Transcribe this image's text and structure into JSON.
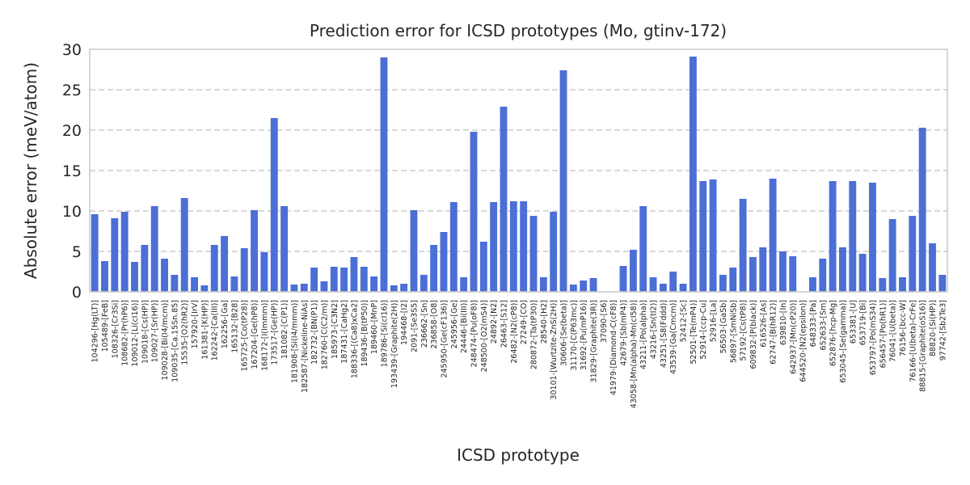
{
  "chart_data": {
    "type": "bar",
    "title": "Prediction error for ICSD prototypes (Mo, gtinv-172)",
    "xlabel": "ICSD prototype",
    "ylabel": "Absolute error (meV/atom)",
    "ylim": [
      0,
      30
    ],
    "yticks": [
      0,
      5,
      10,
      15,
      20,
      25,
      30
    ],
    "grid": "y",
    "bar_color": "#4c6fd6",
    "categories": [
      "104296-[Hg(LT)]",
      "105489-[FeB]",
      "108326-[Cr3Si]",
      "108682-[Pr(hP6)]",
      "109012-[Li(cI16)]",
      "109018-[Cs(HP)]",
      "109027-[Sr(HP)]",
      "109028-[Bi(I4/mcm)]",
      "109035-[Ca.15Sn.85]",
      "15535-[O2(hR2)]",
      "157920-[IrV]",
      "161381-[K(HP)]",
      "162242-[Ca(III)]",
      "162256-[Ga]",
      "165132-[B28]",
      "165725-[Co(tP28)]",
      "167204-[Ge(hP8)]",
      "168172-[I(Immm)]",
      "173517-[Ge(HP)]",
      "181082-[C(P1)]",
      "181908-[Si(I4/mmm)]",
      "182587-[Nickeline-NiAs]",
      "182732-[BN(P1)]",
      "182760-[C(C2/m)]",
      "185973-[C3N2]",
      "187431-[CaHg2]",
      "188336-[(Ca8)xCa2]",
      "189436-[B(tP50)]",
      "189460-[MnP]",
      "189786-[Si(cI16)]",
      "193439-[Graphite(2H)]",
      "194468-[I2]",
      "2091-[Se3S5]",
      "236662-[Sn]",
      "236858-[O8]",
      "245950-[Ge(cF136)]",
      "245956-[Ge]",
      "24446-[Bi(III)]",
      "248474-[Pu(oF8)]",
      "248500-[O2(mS4)]",
      "24892-[N2]",
      "26463-[S12]",
      "26482-[N2(cP8)]",
      "27249-[CO]",
      "280872-[Ta(tP30)]",
      "28540-[H2]",
      "30101-[Wurtzite-ZnS(2H)]",
      "30606-[Se(beta)]",
      "31170-[C(P63mc)]",
      "31692-[Pu(mP16)]",
      "31829-[Graphite(3R)]",
      "37090-[S6]",
      "41979-[Diamond-C(cF8)]",
      "42679-[Sb(mP4)]",
      "43058-[Mn(alpha)-Mn(cI58)]",
      "43211-[Po(alpha)]",
      "43216-[Sn(tI2)]",
      "43251-[S8(Fddd)]",
      "43539-[Ga(Cmcm)]",
      "52412-[Sc]",
      "52501-[Te(mP4)]",
      "52914-[ccp-Cu]",
      "52916-[La]",
      "56503-[GaSb]",
      "56897-[SmNiSb]",
      "57192-[Cs(tP8)]",
      "609832-[P(black)]",
      "616526-[As]",
      "62747-[B(hR12)]",
      "639810-[In]",
      "642937-[Mn(cP20)]",
      "644520-[N2(epsilon)]",
      "648333-[Pa]",
      "652633-[Sm]",
      "652876-[hcp-Mg]",
      "653045-[Se(gamma)]",
      "653381-[U]",
      "653719-[Bi]",
      "653797-[Po(mS34)]",
      "656457-[Po(hR1)]",
      "76041-[U(beta)]",
      "76156-[bcc-W]",
      "76166-[U(beta)-CrFe]",
      "88815-[Graphite(oS16)]",
      "88820-[Si(HP)]",
      "97742-[Sb2Te3]"
    ],
    "values": [
      9.6,
      3.8,
      9.1,
      9.9,
      3.7,
      5.8,
      10.6,
      4.1,
      2.1,
      11.6,
      1.8,
      0.8,
      5.8,
      6.9,
      1.9,
      5.4,
      10.1,
      4.9,
      21.5,
      10.6,
      0.9,
      1.0,
      3.0,
      1.3,
      3.1,
      3.0,
      4.3,
      3.1,
      1.9,
      29.0,
      0.8,
      1.0,
      10.1,
      2.1,
      5.8,
      7.4,
      11.1,
      1.8,
      19.8,
      6.2,
      11.1,
      22.9,
      11.2,
      11.2,
      9.4,
      1.8,
      9.9,
      27.4,
      0.9,
      1.4,
      1.7,
      0.0,
      0.0,
      3.2,
      5.2,
      10.6,
      1.8,
      1.0,
      2.5,
      1.0,
      29.1,
      13.7,
      13.9,
      2.1,
      3.0,
      11.5,
      4.3,
      5.5,
      14.0,
      5.0,
      4.4,
      0.0,
      1.8,
      4.1,
      13.7,
      5.5,
      13.7,
      4.7,
      13.5,
      1.7,
      9.0,
      1.8,
      9.4,
      20.3,
      6.0,
      2.1
    ]
  }
}
